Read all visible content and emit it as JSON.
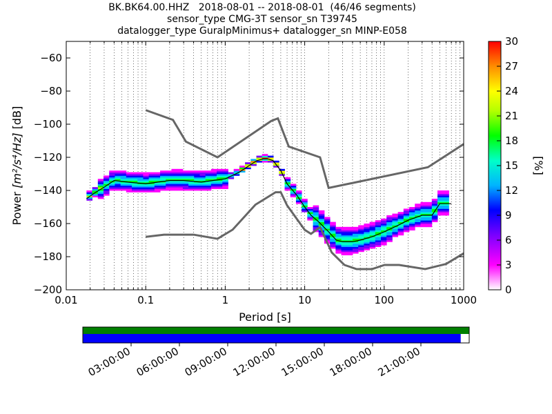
{
  "title_lines": [
    "BK.BK64.00.HHZ   2018-08-01 -- 2018-08-01  (46/46 segments)",
    "sensor_type CMG-3T sensor_sn T39745",
    "datalogger_type GuralpMinimus+ datalogger_sn MINP-E058"
  ],
  "chart_data": {
    "type": "heatmap",
    "xlabel": "Period [s]",
    "ylabel_prefix": "Power ",
    "ylabel_units": "[m²/s⁴/Hz]",
    "ylabel_suffix": " [dB]",
    "xscale": "log",
    "xlim": [
      0.01,
      1000
    ],
    "ylim": [
      -200,
      -50
    ],
    "xticks": [
      {
        "value": 0.01,
        "label": "0.01"
      },
      {
        "value": 0.1,
        "label": "0.1"
      },
      {
        "value": 1,
        "label": "1"
      },
      {
        "value": 10,
        "label": "10"
      },
      {
        "value": 100,
        "label": "100"
      },
      {
        "value": 1000,
        "label": "1000"
      }
    ],
    "yticks": [
      {
        "value": -60,
        "label": "−60"
      },
      {
        "value": -80,
        "label": "−80"
      },
      {
        "value": -100,
        "label": "−100"
      },
      {
        "value": -120,
        "label": "−120"
      },
      {
        "value": -140,
        "label": "−140"
      },
      {
        "value": -160,
        "label": "−160"
      },
      {
        "value": -180,
        "label": "−180"
      },
      {
        "value": -200,
        "label": "−200"
      }
    ],
    "grid": "dotted vertical period gridlines",
    "noise_model_high": {
      "color": "#666666",
      "x": [
        0.1,
        0.22,
        0.32,
        0.8,
        3.8,
        4.6,
        6.3,
        15.6,
        20,
        354.8,
        1000
      ],
      "y": [
        -91.5,
        -97.4,
        -110.5,
        -120,
        -98,
        -96.5,
        -113.5,
        -120,
        -138.5,
        -126,
        -112
      ]
    },
    "noise_model_low": {
      "color": "#666666",
      "x": [
        0.1,
        0.17,
        0.4,
        0.8,
        1.24,
        2.4,
        4.3,
        5.0,
        6.0,
        10,
        12,
        15.6,
        21.9,
        31.6,
        45,
        70,
        101,
        154,
        328,
        600,
        1000
      ],
      "y": [
        -168,
        -166.7,
        -166.7,
        -169.2,
        -163.7,
        -148.6,
        -141.1,
        -141.1,
        -149,
        -163.8,
        -166.2,
        -162.1,
        -177.5,
        -185,
        -187.5,
        -187.5,
        -185,
        -185,
        -187.5,
        -184.4,
        -178
      ]
    },
    "mode_line": {
      "color": "#000000",
      "x": [
        0.018,
        0.022,
        0.03,
        0.04,
        0.06,
        0.1,
        0.2,
        0.3,
        0.5,
        0.7,
        1.0,
        1.5,
        2.0,
        2.5,
        3.0,
        3.5,
        4.0,
        5.0,
        6.0,
        8.0,
        10,
        12,
        15,
        20,
        25,
        30,
        40,
        50,
        70,
        100,
        150,
        200,
        300,
        400,
        500,
        600,
        700
      ],
      "y": [
        -145,
        -142,
        -138,
        -134,
        -135,
        -136,
        -134,
        -134,
        -135,
        -134,
        -133,
        -129,
        -125,
        -122,
        -121,
        -121,
        -122,
        -128,
        -136,
        -143,
        -150,
        -155,
        -159,
        -165,
        -170,
        -171,
        -171,
        -170,
        -168,
        -165,
        -161,
        -158,
        -155,
        -155,
        -148,
        -148,
        -148
      ]
    },
    "colorbar": {
      "label": "[%]",
      "min": 0,
      "max": 30,
      "ticks": [
        {
          "value": 0,
          "label": "0"
        },
        {
          "value": 3,
          "label": "3"
        },
        {
          "value": 6,
          "label": "6"
        },
        {
          "value": 9,
          "label": "9"
        },
        {
          "value": 12,
          "label": "12"
        },
        {
          "value": 15,
          "label": "15"
        },
        {
          "value": 18,
          "label": "18"
        },
        {
          "value": 21,
          "label": "21"
        },
        {
          "value": 24,
          "label": "24"
        },
        {
          "value": 27,
          "label": "27"
        },
        {
          "value": 30,
          "label": "30"
        }
      ]
    },
    "time_coverage": {
      "data_color": "#008000",
      "psd_color": "#0000ff",
      "data_fraction": 1.0,
      "psd_fraction": 0.978,
      "tick_labels": [
        "03:00:00",
        "06:00:00",
        "09:00:00",
        "12:00:00",
        "15:00:00",
        "18:00:00",
        "21:00:00"
      ],
      "tick_hours": [
        3,
        6,
        9,
        12,
        15,
        18,
        21
      ]
    }
  }
}
